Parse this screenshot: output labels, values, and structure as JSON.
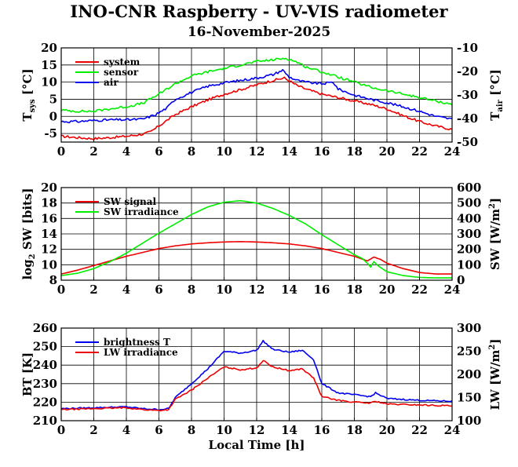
{
  "title": "INO-CNR Raspberry - UV-VIS radiometer",
  "date": "16-November-2025",
  "xlabel": "Local Time [h]",
  "colors": {
    "red": "#ee0000",
    "green": "#00ee00",
    "blue": "#0000ee"
  },
  "chart_data": [
    {
      "type": "line",
      "name": "temperature",
      "ylabel_left": "T_sys [°C]",
      "ylabel_right": "T_air [°C]",
      "xlim": [
        0,
        24
      ],
      "ylim_left": [
        -7.5,
        20
      ],
      "ylim_right": [
        -50,
        -10
      ],
      "xticks": [
        0,
        2,
        4,
        6,
        8,
        10,
        12,
        14,
        16,
        18,
        20,
        22,
        24
      ],
      "yticks_left": [
        -5,
        0,
        5,
        10,
        15,
        20
      ],
      "yticks_right": [
        -50,
        -40,
        -30,
        -20,
        -10
      ],
      "series": [
        {
          "name": "system",
          "color": "#ee0000",
          "x": [
            0,
            1,
            2,
            3,
            4,
            5,
            5.5,
            6,
            7,
            8,
            9,
            10,
            11,
            12,
            13,
            13.7,
            14.5,
            15,
            16,
            17,
            18,
            19,
            20,
            21,
            22,
            23,
            24
          ],
          "values": [
            -5.8,
            -6.2,
            -6.5,
            -6.2,
            -5.8,
            -5.2,
            -4.5,
            -2.8,
            0.5,
            2.8,
            4.8,
            6.5,
            7.8,
            9.2,
            10.5,
            11.2,
            9.0,
            8.0,
            6.5,
            5.5,
            4.5,
            3.5,
            2.2,
            0.2,
            -1.5,
            -2.8,
            -3.8
          ]
        },
        {
          "name": "sensor",
          "color": "#00ee00",
          "x": [
            0,
            1,
            2,
            3,
            4,
            5,
            6,
            7,
            8,
            9,
            10,
            11,
            12,
            13,
            13.8,
            14.5,
            15,
            16,
            17,
            18,
            19,
            20,
            21,
            22,
            23,
            24
          ],
          "values": [
            1.8,
            1.5,
            1.5,
            2.2,
            2.8,
            3.8,
            6.5,
            9.5,
            11.8,
            13.0,
            14.0,
            15.0,
            16.0,
            16.5,
            17.0,
            15.8,
            14.5,
            13.0,
            11.5,
            10.0,
            8.5,
            7.5,
            6.5,
            5.5,
            4.5,
            3.5
          ]
        },
        {
          "name": "air",
          "color": "#0000ee",
          "x": [
            0,
            1,
            2,
            3,
            4,
            5,
            5.8,
            6.5,
            7,
            8,
            9,
            10,
            11,
            12,
            13,
            13.6,
            14,
            14.5,
            15,
            16,
            16.7,
            17,
            18,
            19,
            20,
            21,
            22,
            23,
            24
          ],
          "values": [
            -1.5,
            -1.5,
            -1.2,
            -1.0,
            -1.0,
            -0.8,
            0.5,
            2.5,
            5.0,
            7.0,
            8.8,
            9.8,
            10.5,
            11.2,
            12.2,
            13.5,
            11.5,
            10.5,
            10.0,
            9.5,
            10.0,
            8.0,
            6.2,
            5.0,
            4.0,
            2.8,
            1.5,
            0.0,
            -0.8
          ]
        }
      ]
    },
    {
      "type": "line",
      "name": "shortwave",
      "ylabel_left": "log₂ SW [bits]",
      "ylabel_right": "SW [W/m²]",
      "xlim": [
        0,
        24
      ],
      "ylim_left": [
        8,
        20
      ],
      "ylim_right": [
        0,
        600
      ],
      "xticks": [
        0,
        2,
        4,
        6,
        8,
        10,
        12,
        14,
        16,
        18,
        20,
        22,
        24
      ],
      "yticks_left": [
        8,
        10,
        12,
        14,
        16,
        18,
        20
      ],
      "yticks_right": [
        0,
        100,
        200,
        300,
        400,
        500,
        600
      ],
      "series": [
        {
          "name": "SW signal",
          "color": "#ee0000",
          "x": [
            0,
            1,
            2,
            3,
            4,
            5,
            6,
            7,
            8,
            9,
            10,
            11,
            12,
            13,
            14,
            15,
            16,
            17,
            18,
            18.8,
            19.2,
            19.6,
            20,
            21,
            22,
            23,
            24
          ],
          "values": [
            8.8,
            9.3,
            9.9,
            10.5,
            11.1,
            11.6,
            12.1,
            12.45,
            12.7,
            12.85,
            12.95,
            13.0,
            12.95,
            12.85,
            12.7,
            12.45,
            12.1,
            11.6,
            11.1,
            10.5,
            11.0,
            10.7,
            10.2,
            9.5,
            9.0,
            8.8,
            8.8
          ]
        },
        {
          "name": "SW irradiance",
          "color": "#00ee00",
          "x": [
            0,
            1,
            2,
            3,
            4,
            5,
            6,
            7,
            8,
            9,
            10,
            11,
            12,
            13,
            14,
            15,
            16,
            17,
            18,
            18.5,
            18.8,
            19,
            19.2,
            19.5,
            20,
            21,
            22,
            23,
            24
          ],
          "values": [
            30,
            45,
            75,
            120,
            175,
            240,
            305,
            365,
            425,
            475,
            505,
            515,
            500,
            465,
            420,
            365,
            295,
            230,
            165,
            140,
            110,
            85,
            120,
            90,
            55,
            30,
            18,
            15,
            15
          ]
        }
      ]
    },
    {
      "type": "line",
      "name": "longwave",
      "ylabel_left": "BT [K]",
      "ylabel_right": "LW [W/m²]",
      "xlim": [
        0,
        24
      ],
      "ylim_left": [
        210,
        260
      ],
      "ylim_right": [
        100,
        300
      ],
      "xticks": [
        0,
        2,
        4,
        6,
        8,
        10,
        12,
        14,
        16,
        18,
        20,
        22,
        24
      ],
      "yticks_left": [
        210,
        220,
        230,
        240,
        250,
        260
      ],
      "yticks_right": [
        100,
        150,
        200,
        250,
        300
      ],
      "series": [
        {
          "name": "brightness T",
          "color": "#0000ee",
          "x": [
            0,
            2,
            4,
            5,
            6,
            6.6,
            7,
            8,
            9,
            10,
            11,
            12,
            12.4,
            13,
            14,
            14.8,
            15.5,
            16,
            17,
            18,
            19,
            19.3,
            20,
            22,
            24
          ],
          "values": [
            216.5,
            217.0,
            217.5,
            216.5,
            216.0,
            216.5,
            222.5,
            230.0,
            238.0,
            247.5,
            246.5,
            248.0,
            253.0,
            248.5,
            247.0,
            248.0,
            243.0,
            230.0,
            225.0,
            224.0,
            223.0,
            225.0,
            222.0,
            221.0,
            220.5
          ]
        },
        {
          "name": "LW irradiance",
          "color": "#ee0000",
          "x": [
            0,
            2,
            4,
            5,
            6,
            6.6,
            7,
            8,
            9,
            10,
            11,
            12,
            12.4,
            13,
            14,
            14.8,
            15.5,
            16,
            17,
            18,
            19,
            19.3,
            20,
            22,
            24
          ],
          "values": [
            216.0,
            216.5,
            217.0,
            216.0,
            215.5,
            216.0,
            221.5,
            226.5,
            233.0,
            239.0,
            237.5,
            238.5,
            242.5,
            239.0,
            237.0,
            238.0,
            233.0,
            223.0,
            221.0,
            220.0,
            219.5,
            220.5,
            219.0,
            218.5,
            218.0
          ]
        }
      ]
    }
  ]
}
